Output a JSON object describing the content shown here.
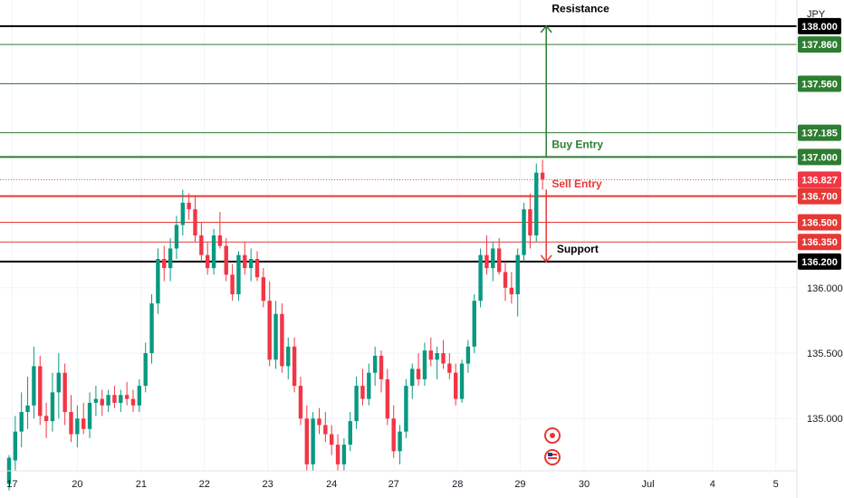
{
  "chart_data": {
    "type": "candlestick",
    "currency_label": "JPY",
    "ylim": [
      134.6,
      138.2
    ],
    "y_ticks": [
      {
        "value": 136.0,
        "label": "136.000"
      },
      {
        "value": 135.5,
        "label": "135.500"
      },
      {
        "value": 135.0,
        "label": "135.000"
      }
    ],
    "x_ticks": [
      {
        "pos": 0.5,
        "label": "17"
      },
      {
        "pos": 11.0,
        "label": "20"
      },
      {
        "pos": 21.3,
        "label": "21"
      },
      {
        "pos": 31.5,
        "label": "22"
      },
      {
        "pos": 41.7,
        "label": "23"
      },
      {
        "pos": 52.0,
        "label": "24"
      },
      {
        "pos": 62.0,
        "label": "27"
      },
      {
        "pos": 72.3,
        "label": "28"
      },
      {
        "pos": 82.4,
        "label": "29"
      },
      {
        "pos": 92.7,
        "label": "30"
      },
      {
        "pos": 103.0,
        "label": "Jul"
      },
      {
        "pos": 113.4,
        "label": "4"
      },
      {
        "pos": 123.6,
        "label": "5"
      }
    ],
    "levels": [
      {
        "value": 138.0,
        "label": "138.000",
        "color": "#000000",
        "width": 2
      },
      {
        "value": 137.86,
        "label": "137.860",
        "color": "#2e7d32",
        "width": 1
      },
      {
        "value": 137.56,
        "label": "137.560",
        "color": "#2e7d32",
        "width": 1
      },
      {
        "value": 137.185,
        "label": "137.185",
        "color": "#2e7d32",
        "width": 1
      },
      {
        "value": 137.0,
        "label": "137.000",
        "color": "#2e7d32",
        "width": 2
      },
      {
        "value": 136.7,
        "label": "136.700",
        "color": "#e53935",
        "width": 2
      },
      {
        "value": 136.5,
        "label": "136.500",
        "color": "#e53935",
        "width": 1
      },
      {
        "value": 136.35,
        "label": "136.350",
        "color": "#e53935",
        "width": 1
      },
      {
        "value": 136.2,
        "label": "136.200",
        "color": "#000000",
        "width": 2
      }
    ],
    "current_price": {
      "value": 136.827,
      "label": "136.827",
      "color": "#f23645"
    },
    "annotations": [
      {
        "text": "Resistance",
        "value": 138.08,
        "x": 87.5,
        "color": "#000000"
      },
      {
        "text": "Buy Entry",
        "value": 137.04,
        "x": 87.5,
        "color": "#2e7d32"
      },
      {
        "text": "Sell Entry",
        "value": 136.74,
        "x": 87.5,
        "color": "#e53935"
      },
      {
        "text": "Support",
        "value": 136.24,
        "x": 88.3,
        "color": "#000000"
      }
    ],
    "arrows": [
      {
        "x": 86.6,
        "from": 137.0,
        "to": 138.0,
        "color": "#2e7d32"
      },
      {
        "x": 86.6,
        "from": 136.75,
        "to": 136.2,
        "color": "#e53935"
      }
    ],
    "ohlc": [
      [
        134.5,
        134.72,
        134.45,
        134.7
      ],
      [
        134.68,
        135.02,
        134.6,
        134.9
      ],
      [
        134.9,
        135.2,
        134.78,
        135.05
      ],
      [
        135.05,
        135.32,
        134.92,
        135.1
      ],
      [
        135.1,
        135.55,
        135.0,
        135.4
      ],
      [
        135.4,
        135.48,
        134.95,
        135.02
      ],
      [
        135.02,
        135.12,
        134.85,
        134.98
      ],
      [
        134.98,
        135.35,
        134.9,
        135.2
      ],
      [
        135.2,
        135.5,
        135.0,
        135.35
      ],
      [
        135.35,
        135.42,
        134.95,
        135.05
      ],
      [
        135.05,
        135.18,
        134.82,
        134.88
      ],
      [
        134.88,
        135.1,
        134.78,
        135.0
      ],
      [
        135.0,
        135.12,
        134.88,
        134.92
      ],
      [
        134.92,
        135.2,
        134.85,
        135.12
      ],
      [
        135.12,
        135.25,
        135.02,
        135.15
      ],
      [
        135.15,
        135.22,
        135.02,
        135.1
      ],
      [
        135.1,
        135.22,
        135.05,
        135.18
      ],
      [
        135.18,
        135.25,
        135.08,
        135.12
      ],
      [
        135.12,
        135.22,
        135.05,
        135.18
      ],
      [
        135.18,
        135.28,
        135.1,
        135.15
      ],
      [
        135.15,
        135.22,
        135.05,
        135.1
      ],
      [
        135.1,
        135.3,
        135.05,
        135.25
      ],
      [
        135.25,
        135.58,
        135.2,
        135.5
      ],
      [
        135.5,
        135.95,
        135.42,
        135.88
      ],
      [
        135.88,
        136.3,
        135.8,
        136.22
      ],
      [
        136.22,
        136.32,
        136.05,
        136.15
      ],
      [
        136.15,
        136.38,
        136.05,
        136.3
      ],
      [
        136.3,
        136.55,
        136.22,
        136.48
      ],
      [
        136.48,
        136.75,
        136.4,
        136.65
      ],
      [
        136.65,
        136.72,
        136.52,
        136.6
      ],
      [
        136.6,
        136.7,
        136.35,
        136.4
      ],
      [
        136.4,
        136.5,
        136.2,
        136.25
      ],
      [
        136.25,
        136.35,
        136.1,
        136.15
      ],
      [
        136.15,
        136.45,
        136.1,
        136.4
      ],
      [
        136.4,
        136.58,
        136.3,
        136.32
      ],
      [
        136.32,
        136.38,
        136.05,
        136.1
      ],
      [
        136.1,
        136.18,
        135.9,
        135.95
      ],
      [
        135.95,
        136.28,
        135.9,
        136.25
      ],
      [
        136.25,
        136.35,
        136.1,
        136.15
      ],
      [
        136.15,
        136.3,
        136.05,
        136.22
      ],
      [
        136.22,
        136.28,
        136.05,
        136.08
      ],
      [
        136.08,
        136.15,
        135.85,
        135.9
      ],
      [
        135.9,
        136.05,
        135.4,
        135.45
      ],
      [
        135.45,
        135.9,
        135.38,
        135.8
      ],
      [
        135.8,
        135.88,
        135.35,
        135.4
      ],
      [
        135.4,
        135.62,
        135.3,
        135.55
      ],
      [
        135.55,
        135.62,
        135.2,
        135.25
      ],
      [
        135.25,
        135.32,
        134.95,
        135.0
      ],
      [
        135.0,
        135.1,
        134.6,
        134.65
      ],
      [
        134.65,
        135.05,
        134.6,
        135.0
      ],
      [
        135.0,
        135.08,
        134.88,
        134.95
      ],
      [
        134.95,
        135.05,
        134.82,
        134.88
      ],
      [
        134.88,
        134.95,
        134.72,
        134.8
      ],
      [
        134.8,
        134.88,
        134.6,
        134.65
      ],
      [
        134.65,
        134.85,
        134.6,
        134.8
      ],
      [
        134.8,
        135.05,
        134.75,
        134.98
      ],
      [
        134.98,
        135.32,
        134.92,
        135.25
      ],
      [
        135.25,
        135.38,
        135.1,
        135.15
      ],
      [
        135.15,
        135.42,
        135.1,
        135.35
      ],
      [
        135.35,
        135.55,
        135.25,
        135.48
      ],
      [
        135.48,
        135.52,
        135.2,
        135.3
      ],
      [
        135.3,
        135.38,
        134.95,
        135.0
      ],
      [
        135.0,
        135.1,
        134.7,
        134.75
      ],
      [
        134.75,
        134.95,
        134.65,
        134.9
      ],
      [
        134.9,
        135.3,
        134.85,
        135.25
      ],
      [
        135.25,
        135.42,
        135.15,
        135.38
      ],
      [
        135.38,
        135.5,
        135.25,
        135.3
      ],
      [
        135.3,
        135.58,
        135.25,
        135.52
      ],
      [
        135.52,
        135.62,
        135.4,
        135.45
      ],
      [
        135.45,
        135.55,
        135.3,
        135.5
      ],
      [
        135.5,
        135.6,
        135.38,
        135.42
      ],
      [
        135.42,
        135.5,
        135.3,
        135.35
      ],
      [
        135.35,
        135.42,
        135.1,
        135.15
      ],
      [
        135.15,
        135.45,
        135.12,
        135.42
      ],
      [
        135.42,
        135.6,
        135.35,
        135.55
      ],
      [
        135.55,
        135.95,
        135.5,
        135.9
      ],
      [
        135.9,
        136.3,
        135.85,
        136.25
      ],
      [
        136.25,
        136.4,
        136.1,
        136.15
      ],
      [
        136.15,
        136.35,
        136.05,
        136.3
      ],
      [
        136.3,
        136.38,
        136.1,
        136.12
      ],
      [
        136.12,
        136.2,
        135.9,
        136.0
      ],
      [
        136.0,
        136.12,
        135.88,
        135.95
      ],
      [
        135.95,
        136.3,
        135.78,
        136.25
      ],
      [
        136.25,
        136.65,
        136.2,
        136.6
      ],
      [
        136.6,
        136.72,
        136.3,
        136.4
      ],
      [
        136.4,
        136.95,
        136.35,
        136.88
      ],
      [
        136.88,
        136.98,
        136.75,
        136.83
      ]
    ]
  }
}
